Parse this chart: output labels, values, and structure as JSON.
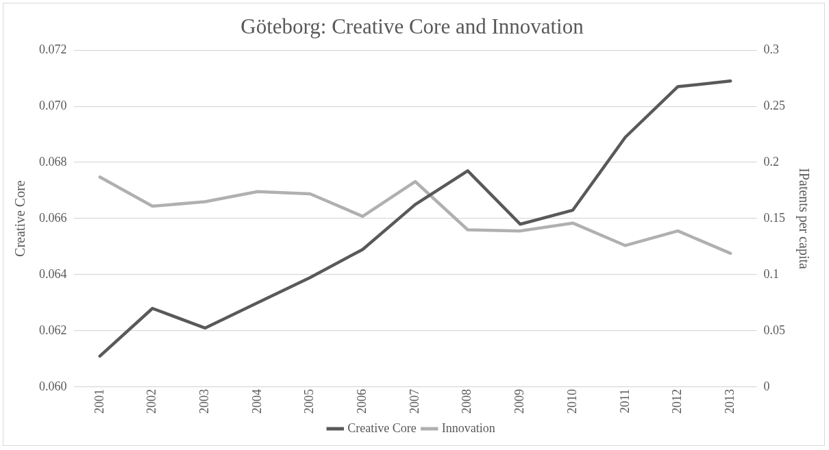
{
  "chart_data": {
    "type": "line",
    "title": "Göteborg: Creative Core and Innovation",
    "ylabel": "Creative Core",
    "y2label": "IPatents per capita",
    "categories": [
      "2001",
      "2002",
      "2003",
      "2004",
      "2005",
      "2006",
      "2007",
      "2008",
      "2009",
      "2010",
      "2011",
      "2012",
      "2013"
    ],
    "series": [
      {
        "name": "Creative Core",
        "color": "#595959",
        "values": [
          0.0611,
          0.0628,
          0.0621,
          0.063,
          0.0639,
          0.0649,
          0.0665,
          0.0677,
          0.0658,
          0.0663,
          0.0689,
          0.0707,
          0.0709
        ]
      },
      {
        "name": "Innovation",
        "color": "#b0b0b0",
        "axis": "y2",
        "values": [
          0.187,
          0.161,
          0.165,
          0.174,
          0.172,
          0.152,
          0.183,
          0.14,
          0.139,
          0.146,
          0.126,
          0.139,
          0.119
        ]
      }
    ],
    "ylim": [
      0.06,
      0.072
    ],
    "yticks": [
      {
        "value": 0.06,
        "label": "0.060"
      },
      {
        "value": 0.062,
        "label": "0.062"
      },
      {
        "value": 0.064,
        "label": "0.064"
      },
      {
        "value": 0.066,
        "label": "0.066"
      },
      {
        "value": 0.068,
        "label": "0.068"
      },
      {
        "value": 0.07,
        "label": "0.070"
      },
      {
        "value": 0.072,
        "label": "0.072"
      }
    ],
    "y2lim": [
      0,
      0.3
    ],
    "y2ticks": [
      0,
      0.05,
      0.1,
      0.15,
      0.2,
      0.25,
      0.3
    ],
    "grid": "y",
    "legend": "bottom",
    "marker": "none",
    "line_style": "solid"
  }
}
